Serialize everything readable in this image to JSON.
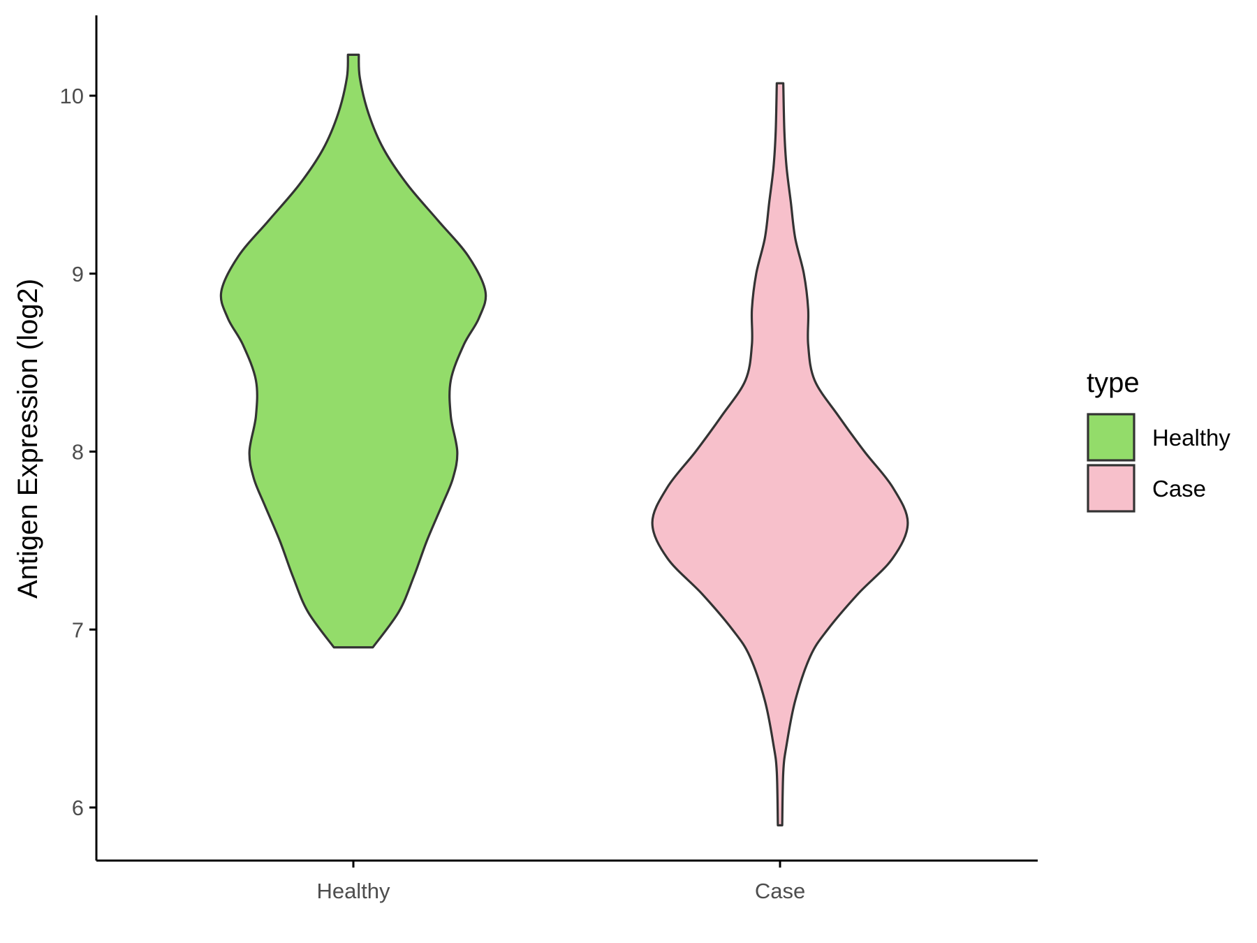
{
  "chart_data": {
    "type": "violin",
    "title": "",
    "xlabel": "",
    "ylabel": "Antigen Expression (log2)",
    "ylim": [
      5.67,
      10.45
    ],
    "yticks": [
      6,
      7,
      8,
      9,
      10
    ],
    "categories": [
      "Healthy",
      "Case"
    ],
    "grid": false,
    "legend": {
      "title": "type",
      "position": "right",
      "entries": [
        "Healthy",
        "Case"
      ]
    },
    "series": [
      {
        "name": "Healthy",
        "color": "#93dc6a",
        "min": 6.9,
        "max": 10.23,
        "density_profile": [
          [
            6.9,
            0.09
          ],
          [
            7.1,
            0.21
          ],
          [
            7.3,
            0.28
          ],
          [
            7.5,
            0.34
          ],
          [
            7.7,
            0.41
          ],
          [
            7.85,
            0.46
          ],
          [
            8.0,
            0.48
          ],
          [
            8.2,
            0.45
          ],
          [
            8.4,
            0.45
          ],
          [
            8.6,
            0.51
          ],
          [
            8.75,
            0.58
          ],
          [
            8.9,
            0.61
          ],
          [
            9.1,
            0.53
          ],
          [
            9.3,
            0.39
          ],
          [
            9.5,
            0.25
          ],
          [
            9.7,
            0.14
          ],
          [
            9.9,
            0.07
          ],
          [
            10.1,
            0.03
          ],
          [
            10.23,
            0.025
          ]
        ]
      },
      {
        "name": "Case",
        "color": "#f7c0cb",
        "min": 5.9,
        "max": 10.07,
        "density_profile": [
          [
            5.9,
            0.01
          ],
          [
            6.2,
            0.015
          ],
          [
            6.35,
            0.03
          ],
          [
            6.6,
            0.07
          ],
          [
            6.85,
            0.14
          ],
          [
            7.0,
            0.22
          ],
          [
            7.2,
            0.36
          ],
          [
            7.4,
            0.52
          ],
          [
            7.6,
            0.59
          ],
          [
            7.8,
            0.52
          ],
          [
            8.0,
            0.39
          ],
          [
            8.2,
            0.27
          ],
          [
            8.4,
            0.16
          ],
          [
            8.6,
            0.13
          ],
          [
            8.8,
            0.13
          ],
          [
            9.0,
            0.11
          ],
          [
            9.2,
            0.07
          ],
          [
            9.4,
            0.05
          ],
          [
            9.6,
            0.03
          ],
          [
            9.8,
            0.02
          ],
          [
            10.07,
            0.015
          ]
        ]
      }
    ]
  }
}
